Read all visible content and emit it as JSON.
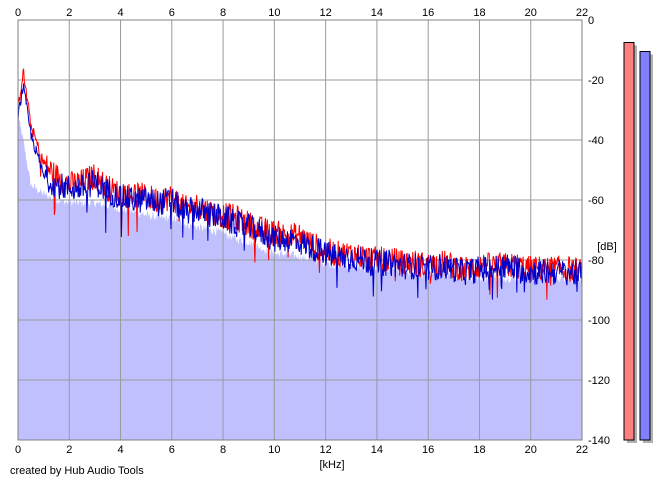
{
  "credit": "created by Hub Audio Tools",
  "chart_data": {
    "type": "area",
    "xlabel": "[kHz]",
    "ylabel": "[dB]",
    "xlim": [
      0,
      22
    ],
    "ylim": [
      -140,
      0
    ],
    "x_ticks": [
      "0",
      "2",
      "4",
      "6",
      "8",
      "10",
      "12",
      "14",
      "16",
      "18",
      "20",
      "22"
    ],
    "y_ticks": [
      "0",
      "-20",
      "-40",
      "-60",
      "-80",
      "-100",
      "-120",
      "-140"
    ],
    "grid": true,
    "x": [
      0,
      0.2,
      0.5,
      1,
      1.5,
      2,
      2.5,
      3,
      3.5,
      4,
      4.5,
      5,
      5.5,
      6,
      6.5,
      7,
      7.5,
      8,
      8.5,
      9,
      9.5,
      10,
      10.5,
      11,
      11.5,
      12,
      12.5,
      13,
      13.5,
      14,
      14.5,
      15,
      15.5,
      16,
      16.5,
      17,
      17.5,
      18,
      18.5,
      19,
      19.5,
      20,
      20.5,
      21,
      21.5,
      22
    ],
    "series": [
      {
        "color": "#ff0000",
        "values": [
          -30,
          -17,
          -35,
          -48,
          -52,
          -55,
          -54,
          -52,
          -56,
          -58,
          -58,
          -59,
          -60,
          -59,
          -63,
          -62,
          -64,
          -65,
          -66,
          -68,
          -70,
          -71,
          -72,
          -72,
          -75,
          -77,
          -78,
          -78,
          -79,
          -80,
          -80,
          -81,
          -81,
          -82,
          -81,
          -82,
          -83,
          -82,
          -82,
          -82,
          -82,
          -83,
          -83,
          -83,
          -83,
          -84
        ]
      },
      {
        "color": "#0000cc",
        "values": [
          -32,
          -22,
          -38,
          -52,
          -55,
          -56,
          -56,
          -54,
          -57,
          -59,
          -60,
          -60,
          -61,
          -60,
          -64,
          -63,
          -65,
          -66,
          -68,
          -69,
          -71,
          -73,
          -73,
          -74,
          -76,
          -78,
          -79,
          -79,
          -80,
          -81,
          -81,
          -82,
          -82,
          -83,
          -82,
          -83,
          -84,
          -83,
          -83,
          -82,
          -83,
          -84,
          -84,
          -84,
          -84,
          -85
        ]
      }
    ],
    "floor": {
      "color": "#c0c0ff",
      "values": [
        -32,
        -40,
        -55,
        -58,
        -60,
        -61,
        -61,
        -61,
        -62,
        -63,
        -64,
        -65,
        -66,
        -66,
        -68,
        -69,
        -70,
        -71,
        -73,
        -74,
        -76,
        -78,
        -78,
        -79,
        -80,
        -81,
        -82,
        -82,
        -83,
        -83,
        -84,
        -84,
        -85,
        -85,
        -85,
        -85,
        -86,
        -86,
        -86,
        -86,
        -86,
        -86,
        -86,
        -86,
        -86,
        -87
      ]
    },
    "level_meters": [
      {
        "color": "#ff8080",
        "level_db": -7.5
      },
      {
        "color": "#8080ff",
        "level_db": -10.5
      }
    ]
  }
}
